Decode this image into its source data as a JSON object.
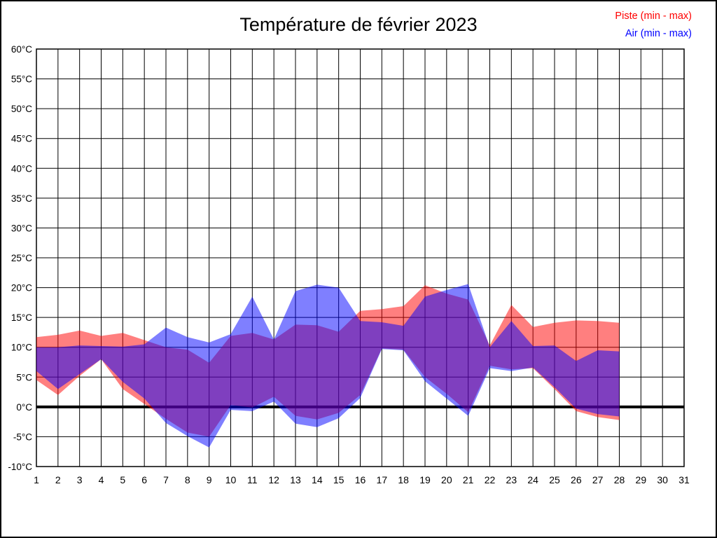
{
  "page": {
    "background": "#ffffff",
    "border_color": "#000000"
  },
  "title": "Température de février 2023",
  "legend": [
    {
      "id": "piste",
      "label": "Piste (min - max)",
      "color": "#ff0000"
    },
    {
      "id": "air",
      "label": "Air (min - max)",
      "color": "#0000ff"
    }
  ],
  "chart_data": {
    "type": "area",
    "title": "Température de février 2023",
    "xlabel": "",
    "ylabel": "",
    "grid": true,
    "legend_position": "top-right",
    "x_axis": {
      "min": 1,
      "max": 31,
      "ticks": [
        1,
        2,
        3,
        4,
        5,
        6,
        7,
        8,
        9,
        10,
        11,
        12,
        13,
        14,
        15,
        16,
        17,
        18,
        19,
        20,
        21,
        22,
        23,
        24,
        25,
        26,
        27,
        28,
        29,
        30,
        31
      ]
    },
    "y_axis": {
      "min": -10,
      "max": 60,
      "step": 5,
      "tick_suffix": "°C",
      "ticks": [
        60,
        55,
        50,
        45,
        40,
        35,
        30,
        25,
        20,
        15,
        10,
        5,
        0,
        -5,
        -10
      ]
    },
    "zero_line": {
      "value": 0,
      "color": "#000000",
      "width": 4
    },
    "days": [
      1,
      2,
      3,
      4,
      5,
      6,
      7,
      8,
      9,
      10,
      11,
      12,
      13,
      14,
      15,
      16,
      17,
      18,
      19,
      20,
      21,
      22,
      23,
      24,
      25,
      26,
      27,
      28
    ],
    "series": [
      {
        "name": "Piste (min - max)",
        "stroke": "#ff0000",
        "fill": "rgba(255,0,0,0.5)",
        "max": [
          11.7,
          12.1,
          12.8,
          11.9,
          12.4,
          11.2,
          10.0,
          9.6,
          7.4,
          11.9,
          12.4,
          11.3,
          13.8,
          13.7,
          12.6,
          16.1,
          16.4,
          16.9,
          20.4,
          19.0,
          18.0,
          10.3,
          17.1,
          13.4,
          14.1,
          14.5,
          14.4,
          14.1
        ],
        "min": [
          4.5,
          2.0,
          5.2,
          8.0,
          3.0,
          0.5,
          -2.0,
          -4.3,
          -5.0,
          0.3,
          -0.1,
          1.7,
          -1.5,
          -2.1,
          -1.0,
          2.0,
          9.8,
          9.6,
          5.0,
          2.2,
          -0.9,
          6.9,
          6.3,
          6.5,
          3.0,
          -0.7,
          -1.7,
          -2.2
        ]
      },
      {
        "name": "Air (min - max)",
        "stroke": "#0000ff",
        "fill": "rgba(0,0,255,0.5)",
        "max": [
          10.0,
          10.0,
          10.3,
          10.2,
          10.1,
          10.5,
          13.3,
          11.7,
          10.8,
          12.2,
          18.5,
          11.3,
          19.4,
          20.5,
          20.0,
          14.4,
          14.2,
          13.6,
          18.5,
          19.6,
          20.6,
          10.0,
          14.4,
          10.2,
          10.3,
          7.7,
          9.5,
          9.3
        ],
        "min": [
          6.0,
          3.0,
          5.5,
          8.0,
          4.2,
          1.4,
          -2.7,
          -4.9,
          -6.8,
          -0.5,
          -0.7,
          0.9,
          -2.8,
          -3.4,
          -1.9,
          1.5,
          9.7,
          9.5,
          4.3,
          1.4,
          -1.5,
          6.5,
          6.0,
          6.6,
          3.3,
          -0.3,
          -1.2,
          -1.6
        ]
      }
    ]
  }
}
